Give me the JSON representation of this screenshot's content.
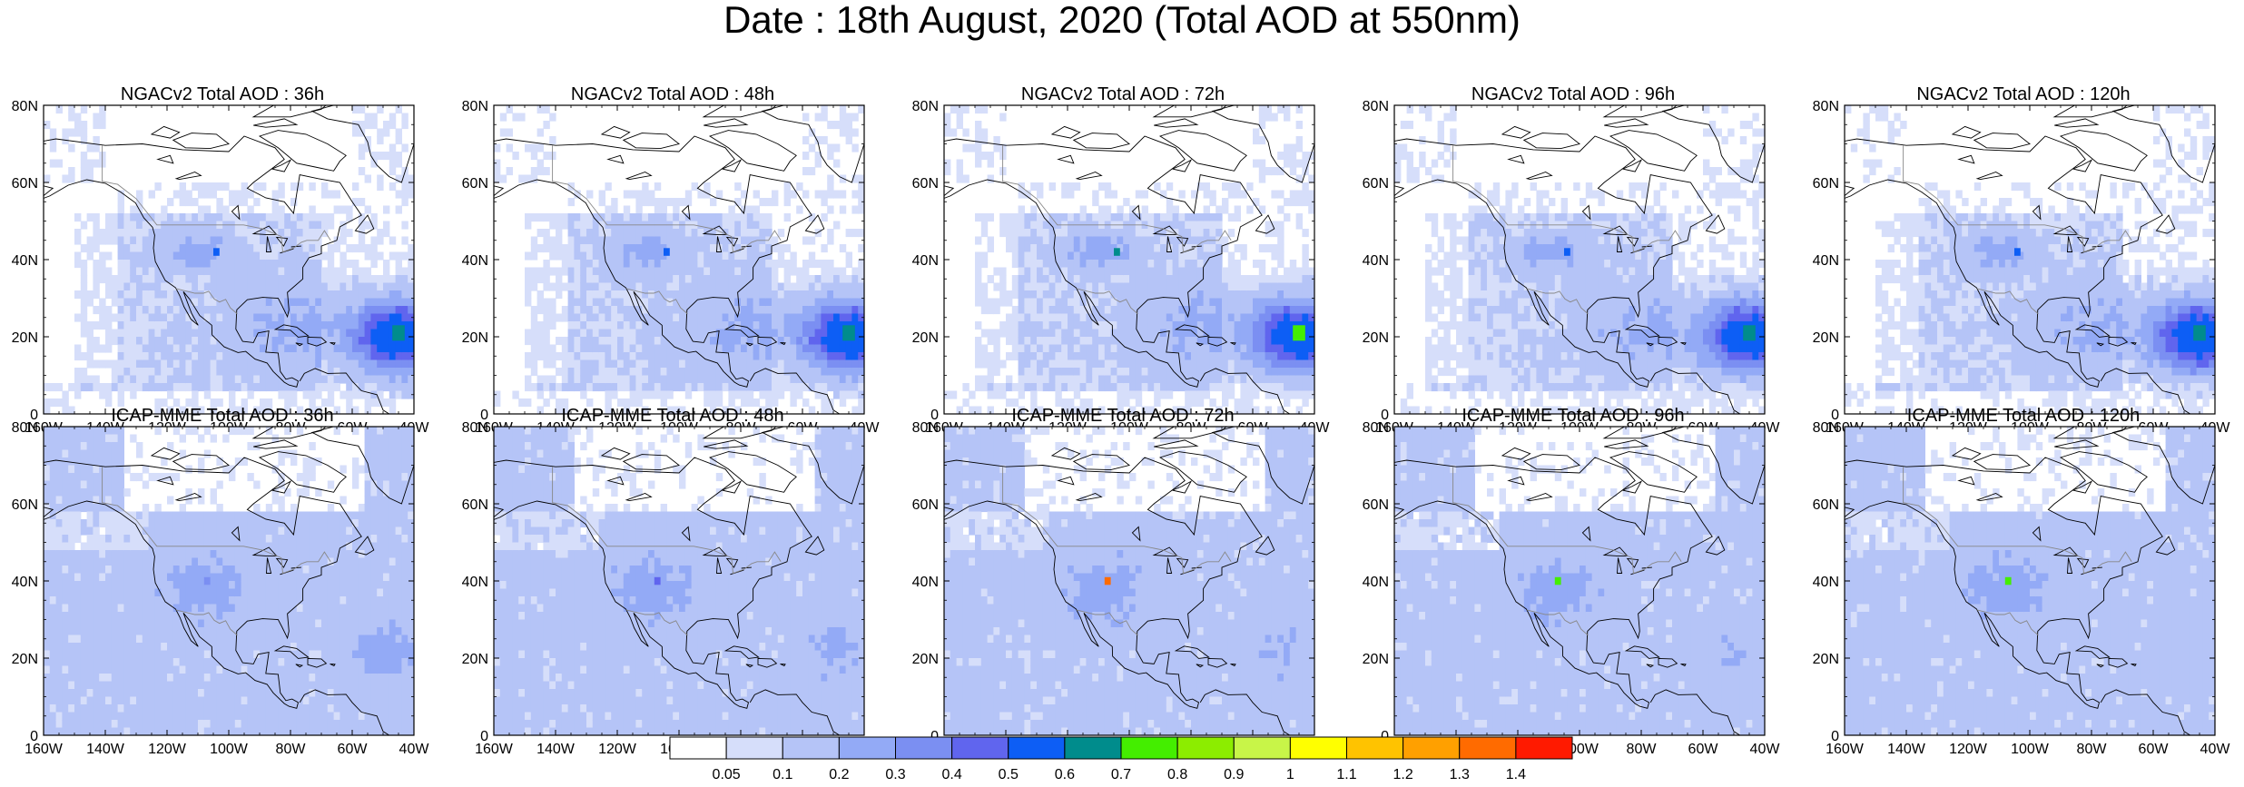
{
  "title": "Date : 18th August, 2020 (Total AOD at 550nm)",
  "rows": [
    {
      "model": "NGACv2",
      "panels": [
        {
          "title": "NGACv2 Total AOD : 36h",
          "hotspot_level": 7
        },
        {
          "title": "NGACv2 Total AOD : 48h",
          "hotspot_level": 7
        },
        {
          "title": "NGACv2 Total AOD : 72h",
          "hotspot_level": 8
        },
        {
          "title": "NGACv2 Total AOD : 96h",
          "hotspot_level": 7
        },
        {
          "title": "NGACv2 Total AOD : 120h",
          "hotspot_level": 7
        }
      ]
    },
    {
      "model": "ICAP-MME",
      "panels": [
        {
          "title": "ICAP-MME Total AOD : 36h",
          "hotspot_level": 4
        },
        {
          "title": "ICAP-MME Total AOD : 48h",
          "hotspot_level": 5
        },
        {
          "title": "ICAP-MME Total AOD : 72h",
          "hotspot_level": 14
        },
        {
          "title": "ICAP-MME Total AOD : 96h",
          "hotspot_level": 8
        },
        {
          "title": "ICAP-MME Total AOD : 120h",
          "hotspot_level": 8
        }
      ]
    }
  ],
  "axes": {
    "lon_ticks": [
      "160W",
      "140W",
      "120W",
      "100W",
      "80W",
      "60W",
      "40W"
    ],
    "lat_ticks": [
      "0",
      "20N",
      "40N",
      "60N",
      "80N"
    ]
  },
  "colorbar": {
    "labels": [
      "0.05",
      "0.1",
      "0.2",
      "0.3",
      "0.4",
      "0.5",
      "0.6",
      "0.7",
      "0.8",
      "0.9",
      "1",
      "1.1",
      "1.2",
      "1.3",
      "1.4"
    ],
    "colors": [
      "#ffffff",
      "#d6defa",
      "#b5c4f7",
      "#93aaf6",
      "#7b8ff2",
      "#6065ee",
      "#0d5ef5",
      "#008c8c",
      "#44ee00",
      "#8ced00",
      "#c8f548",
      "#ffff00",
      "#ffc300",
      "#ffa000",
      "#ff6b00",
      "#ff1a00"
    ]
  }
}
